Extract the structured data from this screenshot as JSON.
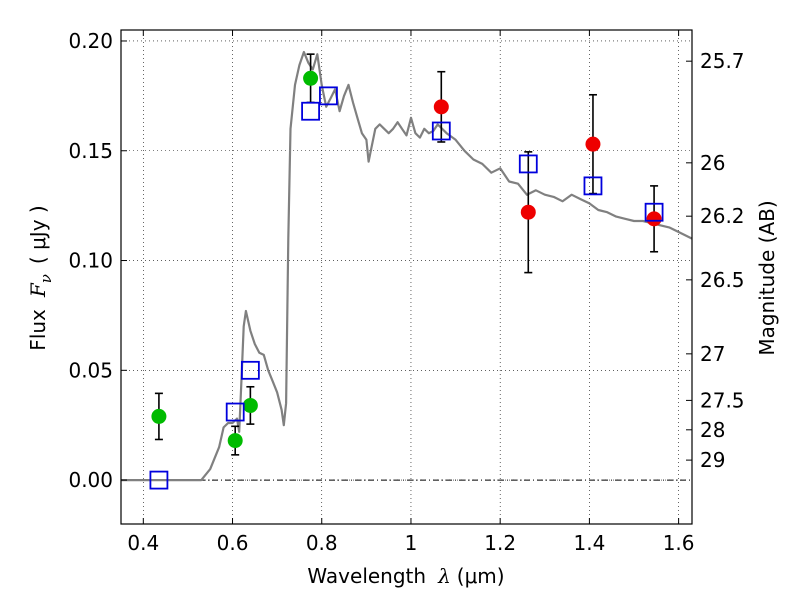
{
  "chart_data": {
    "type": "scatter",
    "xlabel": "Wavelength",
    "xlabel_symbol": "λ",
    "xlabel_unit": "(μm)",
    "ylabel": "Flux",
    "ylabel_symbol": "F",
    "ylabel_sub": "ν",
    "ylabel_unit": "( μJy )",
    "ylabel_right": "Magnitude (AB)",
    "xlim": [
      0.35,
      1.63
    ],
    "ylim": [
      -0.02,
      0.205
    ],
    "grid": true,
    "x_ticks": [
      {
        "value": 0.4,
        "label": "0.4"
      },
      {
        "value": 0.6,
        "label": "0.6"
      },
      {
        "value": 0.8,
        "label": "0.8"
      },
      {
        "value": 1.0,
        "label": "1"
      },
      {
        "value": 1.2,
        "label": "1.2"
      },
      {
        "value": 1.4,
        "label": "1.4"
      },
      {
        "value": 1.6,
        "label": "1.6"
      }
    ],
    "y_ticks": [
      {
        "value": 0.0,
        "label": "0.00"
      },
      {
        "value": 0.05,
        "label": "0.05"
      },
      {
        "value": 0.1,
        "label": "0.10"
      },
      {
        "value": 0.15,
        "label": "0.15"
      },
      {
        "value": 0.2,
        "label": "0.20"
      }
    ],
    "magnitude_ticks": [
      {
        "flux": 0.1908,
        "label": "25.7"
      },
      {
        "flux": 0.1445,
        "label": "26"
      },
      {
        "flux": 0.1202,
        "label": "26.2"
      },
      {
        "flux": 0.0912,
        "label": "26.5"
      },
      {
        "flux": 0.0575,
        "label": "27"
      },
      {
        "flux": 0.0363,
        "label": "27.5"
      },
      {
        "flux": 0.0229,
        "label": "28"
      },
      {
        "flux": 0.0091,
        "label": "29"
      }
    ],
    "colors": {
      "model": "#808080",
      "observed_green": "#00bb00",
      "observed_red": "#ee0000",
      "model_photometry": "#0000dd",
      "error_bar": "#000000"
    },
    "series": [
      {
        "kind": "line",
        "color_key": "model",
        "points": [
          [
            0.35,
            0.0
          ],
          [
            0.4,
            0.0
          ],
          [
            0.45,
            0.0
          ],
          [
            0.5,
            0.0
          ],
          [
            0.53,
            0.0
          ],
          [
            0.55,
            0.005
          ],
          [
            0.57,
            0.015
          ],
          [
            0.58,
            0.024
          ],
          [
            0.59,
            0.026
          ],
          [
            0.6,
            0.026
          ],
          [
            0.61,
            0.028
          ],
          [
            0.615,
            0.022
          ],
          [
            0.62,
            0.045
          ],
          [
            0.625,
            0.07
          ],
          [
            0.63,
            0.077
          ],
          [
            0.64,
            0.068
          ],
          [
            0.65,
            0.062
          ],
          [
            0.66,
            0.058
          ],
          [
            0.67,
            0.057
          ],
          [
            0.68,
            0.05
          ],
          [
            0.69,
            0.045
          ],
          [
            0.7,
            0.04
          ],
          [
            0.71,
            0.032
          ],
          [
            0.715,
            0.025
          ],
          [
            0.72,
            0.035
          ],
          [
            0.725,
            0.11
          ],
          [
            0.73,
            0.16
          ],
          [
            0.74,
            0.18
          ],
          [
            0.75,
            0.189
          ],
          [
            0.76,
            0.195
          ],
          [
            0.77,
            0.19
          ],
          [
            0.78,
            0.187
          ],
          [
            0.79,
            0.194
          ],
          [
            0.8,
            0.18
          ],
          [
            0.81,
            0.17
          ],
          [
            0.82,
            0.174
          ],
          [
            0.83,
            0.178
          ],
          [
            0.84,
            0.168
          ],
          [
            0.85,
            0.175
          ],
          [
            0.86,
            0.18
          ],
          [
            0.87,
            0.172
          ],
          [
            0.88,
            0.165
          ],
          [
            0.89,
            0.158
          ],
          [
            0.9,
            0.155
          ],
          [
            0.905,
            0.145
          ],
          [
            0.91,
            0.15
          ],
          [
            0.92,
            0.16
          ],
          [
            0.93,
            0.162
          ],
          [
            0.94,
            0.16
          ],
          [
            0.95,
            0.158
          ],
          [
            0.96,
            0.16
          ],
          [
            0.97,
            0.163
          ],
          [
            0.98,
            0.16
          ],
          [
            0.99,
            0.157
          ],
          [
            1.0,
            0.165
          ],
          [
            1.01,
            0.158
          ],
          [
            1.02,
            0.156
          ],
          [
            1.03,
            0.16
          ],
          [
            1.04,
            0.158
          ],
          [
            1.05,
            0.159
          ],
          [
            1.06,
            0.162
          ],
          [
            1.08,
            0.158
          ],
          [
            1.1,
            0.155
          ],
          [
            1.12,
            0.15
          ],
          [
            1.14,
            0.146
          ],
          [
            1.16,
            0.144
          ],
          [
            1.18,
            0.14
          ],
          [
            1.2,
            0.142
          ],
          [
            1.22,
            0.136
          ],
          [
            1.24,
            0.135
          ],
          [
            1.26,
            0.13
          ],
          [
            1.28,
            0.132
          ],
          [
            1.3,
            0.13
          ],
          [
            1.32,
            0.129
          ],
          [
            1.34,
            0.127
          ],
          [
            1.36,
            0.13
          ],
          [
            1.38,
            0.128
          ],
          [
            1.4,
            0.126
          ],
          [
            1.42,
            0.123
          ],
          [
            1.44,
            0.122
          ],
          [
            1.46,
            0.12
          ],
          [
            1.48,
            0.119
          ],
          [
            1.5,
            0.118
          ],
          [
            1.52,
            0.118
          ],
          [
            1.54,
            0.117
          ],
          [
            1.56,
            0.116
          ],
          [
            1.58,
            0.115
          ],
          [
            1.6,
            0.113
          ],
          [
            1.63,
            0.11
          ]
        ]
      },
      {
        "kind": "points",
        "marker": "circle",
        "color_key": "observed_green",
        "points": [
          {
            "x": 0.435,
            "y": 0.029,
            "err": 0.0105
          },
          {
            "x": 0.606,
            "y": 0.018,
            "err": 0.0065
          },
          {
            "x": 0.64,
            "y": 0.034,
            "err": 0.0085
          },
          {
            "x": 0.775,
            "y": 0.183,
            "err": 0.011
          }
        ]
      },
      {
        "kind": "points",
        "marker": "circle",
        "color_key": "observed_red",
        "points": [
          {
            "x": 1.068,
            "y": 0.17,
            "err": 0.016
          },
          {
            "x": 1.263,
            "y": 0.122,
            "err": 0.0275
          },
          {
            "x": 1.408,
            "y": 0.153,
            "err": 0.0225
          },
          {
            "x": 1.545,
            "y": 0.119,
            "err": 0.015
          }
        ]
      },
      {
        "kind": "points",
        "marker": "square",
        "color_key": "model_photometry",
        "points": [
          {
            "x": 0.435,
            "y": 0.0
          },
          {
            "x": 0.606,
            "y": 0.031
          },
          {
            "x": 0.64,
            "y": 0.05
          },
          {
            "x": 0.775,
            "y": 0.168
          },
          {
            "x": 0.815,
            "y": 0.175
          },
          {
            "x": 1.068,
            "y": 0.159
          },
          {
            "x": 1.263,
            "y": 0.144
          },
          {
            "x": 1.408,
            "y": 0.134
          },
          {
            "x": 1.545,
            "y": 0.122
          }
        ]
      }
    ]
  }
}
